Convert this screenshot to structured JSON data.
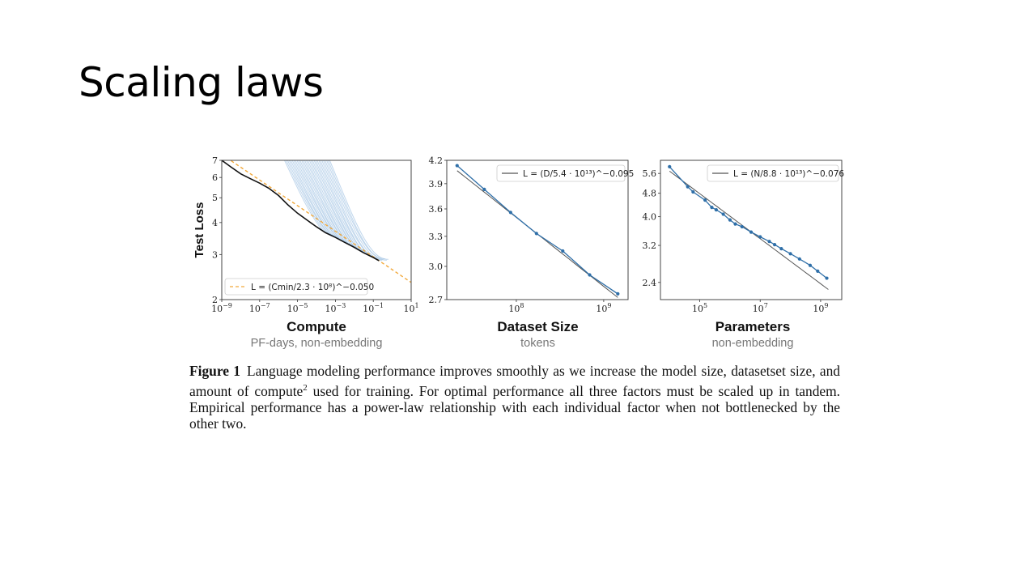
{
  "slide": {
    "title": "Scaling laws"
  },
  "figure": {
    "caption_label": "Figure 1",
    "caption_text_1": "Language modeling performance improves smoothly as we increase the model size, datasetset size, and amount of compute",
    "caption_sup": "2",
    "caption_text_2": " used for training. For optimal performance all three factors must be scaled up in tandem. Empirical performance has a power-law relationship with each individual factor when not bottlenecked by the other two."
  },
  "colors": {
    "data": "#2f6fa8",
    "fit": "#555555",
    "trace": "#a9c8e6",
    "frontier": "#111111",
    "compute_fit": "#f2a93b"
  },
  "chart_data": [
    {
      "type": "line",
      "xscale": "log",
      "yscale": "log",
      "title": "Compute",
      "xlabel": "PF-days, non-embedding",
      "ylabel": "Test Loss",
      "xlim": [
        1e-09,
        10
      ],
      "ylim": [
        2,
        7
      ],
      "xticks": [
        {
          "v": 1e-09,
          "b": "10",
          "e": "−9"
        },
        {
          "v": 1e-07,
          "b": "10",
          "e": "−7"
        },
        {
          "v": 1e-05,
          "b": "10",
          "e": "−5"
        },
        {
          "v": 0.001,
          "b": "10",
          "e": "−3"
        },
        {
          "v": 0.1,
          "b": "10",
          "e": "−1"
        },
        {
          "v": 10,
          "b": "10",
          "e": "1"
        }
      ],
      "yticks": [
        {
          "v": 2,
          "l": "2"
        },
        {
          "v": 3,
          "l": "3"
        },
        {
          "v": 4,
          "l": "4"
        },
        {
          "v": 5,
          "l": "5"
        },
        {
          "v": 6,
          "l": "6"
        },
        {
          "v": 7,
          "l": "7"
        }
      ],
      "legend": {
        "position": "bottom-left",
        "text": "L = (Cmin/2.3 · 10⁸)^−0.050"
      },
      "fit": {
        "name": "L = (Cmin/2.3 · 10⁸)^−0.050",
        "scale": 230000000.0,
        "exponent": 0.05
      },
      "frontier": [
        [
          1e-09,
          7.0
        ],
        [
          3e-09,
          6.6
        ],
        [
          1e-08,
          6.2
        ],
        [
          3e-08,
          5.95
        ],
        [
          1e-07,
          5.7
        ],
        [
          3e-07,
          5.45
        ],
        [
          1e-06,
          5.1
        ],
        [
          3e-06,
          4.7
        ],
        [
          1e-05,
          4.35
        ],
        [
          3e-05,
          4.1
        ],
        [
          0.0001,
          3.85
        ],
        [
          0.0003,
          3.65
        ],
        [
          0.001,
          3.5
        ],
        [
          0.003,
          3.35
        ],
        [
          0.01,
          3.2
        ],
        [
          0.03,
          3.05
        ],
        [
          0.1,
          2.92
        ],
        [
          0.2,
          2.84
        ]
      ],
      "curve_count": 30
    },
    {
      "type": "line",
      "xscale": "log",
      "yscale": "log",
      "title": "Dataset Size",
      "xlabel": "tokens",
      "xlim": [
        16000000.0,
        1900000000.0
      ],
      "ylim": [
        2.7,
        4.2
      ],
      "xticks": [
        {
          "v": 100000000.0,
          "b": "10",
          "e": "8"
        },
        {
          "v": 1000000000.0,
          "b": "10",
          "e": "9"
        }
      ],
      "yticks": [
        {
          "v": 2.7,
          "l": "2.7"
        },
        {
          "v": 3.0,
          "l": "3.0"
        },
        {
          "v": 3.3,
          "l": "3.3"
        },
        {
          "v": 3.6,
          "l": "3.6"
        },
        {
          "v": 3.9,
          "l": "3.9"
        },
        {
          "v": 4.2,
          "l": "4.2"
        }
      ],
      "legend": {
        "position": "top-right",
        "text": "L = (D/5.4 · 10¹³)^−0.095"
      },
      "fit": {
        "name": "L = (D/5.4 · 10¹³)^−0.095",
        "scale": 54000000000000.0,
        "exponent": 0.095
      },
      "points": [
        [
          21000000.0,
          4.13
        ],
        [
          43000000.0,
          3.83
        ],
        [
          86000000.0,
          3.56
        ],
        [
          170000000.0,
          3.33
        ],
        [
          340000000.0,
          3.15
        ],
        [
          690000000.0,
          2.92
        ],
        [
          1450000000.0,
          2.75
        ]
      ]
    },
    {
      "type": "line",
      "xscale": "log",
      "yscale": "log",
      "title": "Parameters",
      "xlabel": "non-embedding",
      "xlim": [
        5000.0,
        5000000000.0
      ],
      "ylim": [
        2.1,
        6.2
      ],
      "xticks": [
        {
          "v": 100000.0,
          "b": "10",
          "e": "5"
        },
        {
          "v": 10000000.0,
          "b": "10",
          "e": "7"
        },
        {
          "v": 1000000000.0,
          "b": "10",
          "e": "9"
        }
      ],
      "yticks": [
        {
          "v": 2.4,
          "l": "2.4"
        },
        {
          "v": 3.2,
          "l": "3.2"
        },
        {
          "v": 4.0,
          "l": "4.0"
        },
        {
          "v": 4.8,
          "l": "4.8"
        },
        {
          "v": 5.6,
          "l": "5.6"
        }
      ],
      "legend": {
        "position": "top-right",
        "text": "L = (N/8.8 · 10¹³)^−0.076"
      },
      "fit": {
        "name": "L = (N/8.8 · 10¹³)^−0.076",
        "scale": 88000000000000.0,
        "exponent": 0.076
      },
      "points": [
        [
          10000.0,
          5.9
        ],
        [
          40000.0,
          5.05
        ],
        [
          60000.0,
          4.85
        ],
        [
          150000.0,
          4.55
        ],
        [
          250000.0,
          4.3
        ],
        [
          350000.0,
          4.22
        ],
        [
          600000.0,
          4.08
        ],
        [
          1000000.0,
          3.9
        ],
        [
          1500000.0,
          3.78
        ],
        [
          2500000.0,
          3.7
        ],
        [
          5000000.0,
          3.55
        ],
        [
          10000000.0,
          3.42
        ],
        [
          20000000.0,
          3.3
        ],
        [
          30000000.0,
          3.22
        ],
        [
          50000000.0,
          3.12
        ],
        [
          100000000.0,
          3.0
        ],
        [
          200000000.0,
          2.88
        ],
        [
          450000000.0,
          2.74
        ],
        [
          800000000.0,
          2.62
        ],
        [
          1600000000.0,
          2.48
        ]
      ]
    }
  ]
}
